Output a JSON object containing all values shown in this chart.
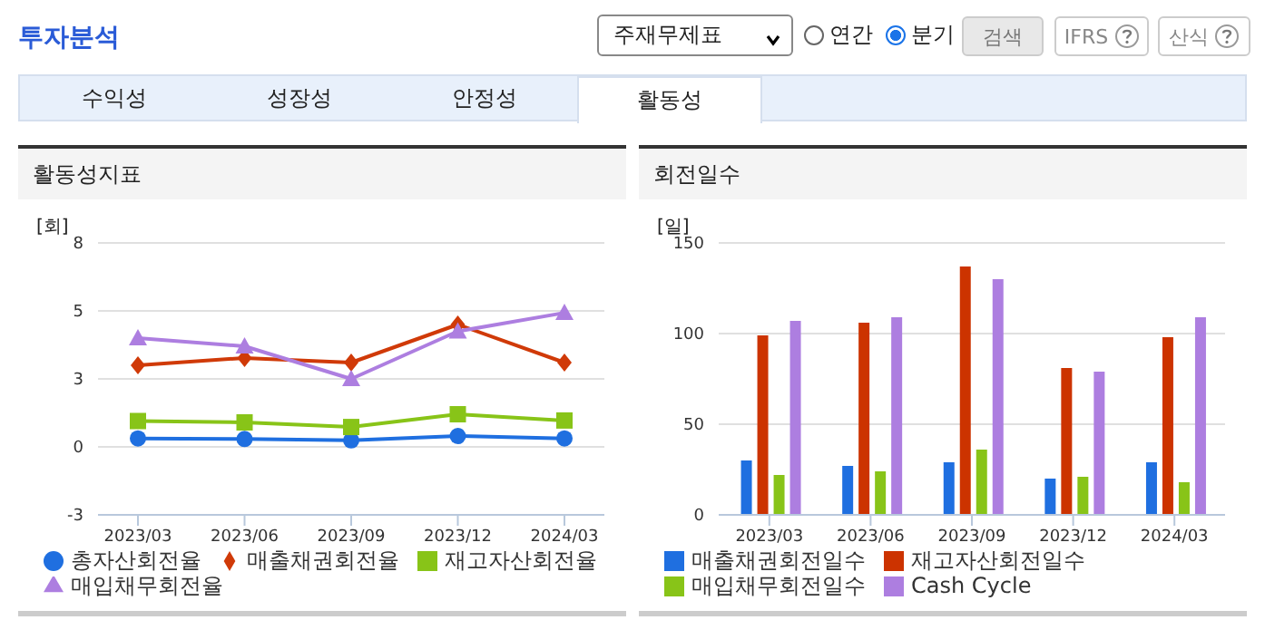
{
  "chart_data": [
    {
      "type": "other",
      "title": "투자분석",
      "annotations": [
        "주재무제표",
        "연간",
        "분기",
        "검색",
        "IFRS",
        "산식",
        "수익성",
        "성장성",
        "안정성",
        "활동성"
      ]
    },
    {
      "type": "line",
      "title": "활동성지표",
      "ylabel": "[회]",
      "categories": [
        "2023/03",
        "2023/06",
        "2023/09",
        "2023/12",
        "2024/03"
      ],
      "series": [
        {
          "name": "총자산회전율",
          "color": "#1f6fe0",
          "marker": "circle",
          "values": [
            0.31,
            0.29,
            0.24,
            0.4,
            0.31
          ]
        },
        {
          "name": "매출채권회전율",
          "color": "#d03a08",
          "marker": "diamond",
          "values": [
            3.0,
            3.27,
            3.1,
            4.5,
            3.1
          ]
        },
        {
          "name": "재고자산회전율",
          "color": "#88c418",
          "marker": "square",
          "values": [
            0.95,
            0.9,
            0.73,
            1.2,
            0.97
          ]
        },
        {
          "name": "매입채무회전율",
          "color": "#ad7ee0",
          "marker": "triangle",
          "values": [
            4.0,
            3.7,
            2.5,
            4.25,
            4.93
          ]
        }
      ],
      "ylim": [
        -2.5,
        7.5
      ],
      "yticks": [
        {
          "value": -2.5,
          "label": "-3"
        },
        {
          "value": 0,
          "label": "0"
        },
        {
          "value": 2.5,
          "label": "3"
        },
        {
          "value": 5,
          "label": "5"
        },
        {
          "value": 7.5,
          "label": "8"
        }
      ],
      "grid": "y",
      "legend": "bottom"
    },
    {
      "type": "bar",
      "title": "회전일수",
      "ylabel": "[일]",
      "categories": [
        "2023/03",
        "2023/06",
        "2023/09",
        "2023/12",
        "2024/03"
      ],
      "series": [
        {
          "name": "매출채권회전일수",
          "color": "#1f6fe0",
          "values": [
            30,
            27,
            29,
            20,
            29
          ]
        },
        {
          "name": "재고자산회전일수",
          "color": "#cc3300",
          "values": [
            99,
            106,
            137,
            81,
            98
          ]
        },
        {
          "name": "매입채무회전일수",
          "color": "#88c418",
          "values": [
            22,
            24,
            36,
            21,
            18
          ]
        },
        {
          "name": "Cash Cycle",
          "color": "#ad7ee0",
          "values": [
            107,
            109,
            130,
            79,
            109
          ]
        }
      ],
      "ylim": [
        0,
        150
      ],
      "yticks": [
        0,
        50,
        100,
        150
      ],
      "grid": "y",
      "legend": "bottom"
    }
  ]
}
